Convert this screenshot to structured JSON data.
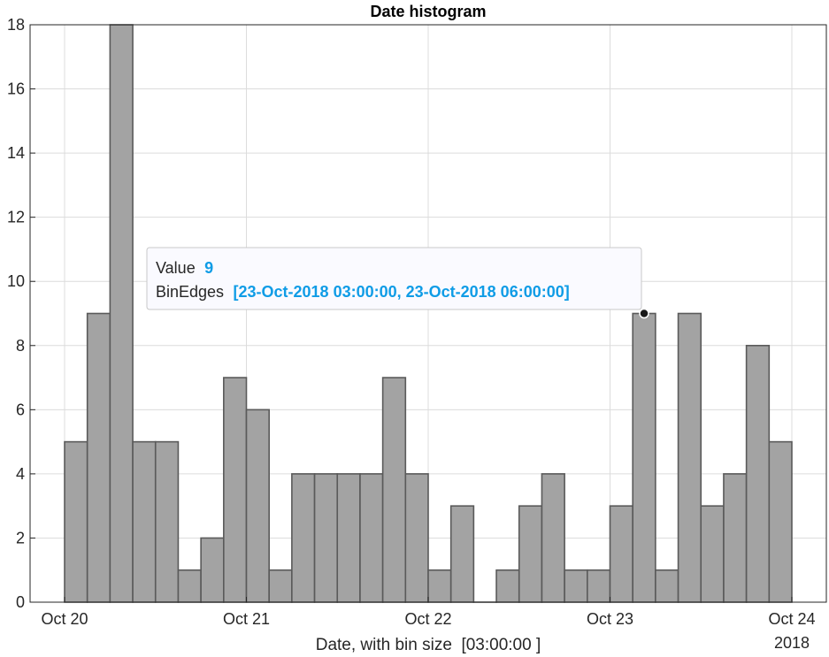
{
  "chart_data": {
    "type": "bar",
    "title": "Date histogram",
    "xlabel": "Date, with bin size  [03:00:00 ]",
    "ylabel": "",
    "x_tick_labels": [
      "Oct 20",
      "Oct 21",
      "Oct 22",
      "Oct 23",
      "Oct 24"
    ],
    "x_secondary_label": "2018",
    "x_start": "2018-10-20T00:00:00",
    "x_end": "2018-10-24T00:00:00",
    "bin_size": "03:00:00",
    "values": [
      5,
      9,
      18,
      5,
      5,
      1,
      2,
      7,
      6,
      1,
      4,
      4,
      4,
      4,
      7,
      4,
      1,
      3,
      0,
      1,
      3,
      4,
      1,
      1,
      3,
      9,
      1,
      9,
      3,
      4,
      8,
      5
    ],
    "ylim": [
      0,
      18
    ],
    "y_ticks": [
      0,
      2,
      4,
      6,
      8,
      10,
      12,
      14,
      16,
      18
    ],
    "grid": true,
    "legend": "none",
    "bar_color": "#a3a3a3",
    "datatip": {
      "bin_index": 25,
      "value_label": "Value",
      "value": "9",
      "edges_label": "BinEdges",
      "edges": "[23-Oct-2018 03:00:00, 23-Oct-2018 06:00:00]"
    }
  }
}
